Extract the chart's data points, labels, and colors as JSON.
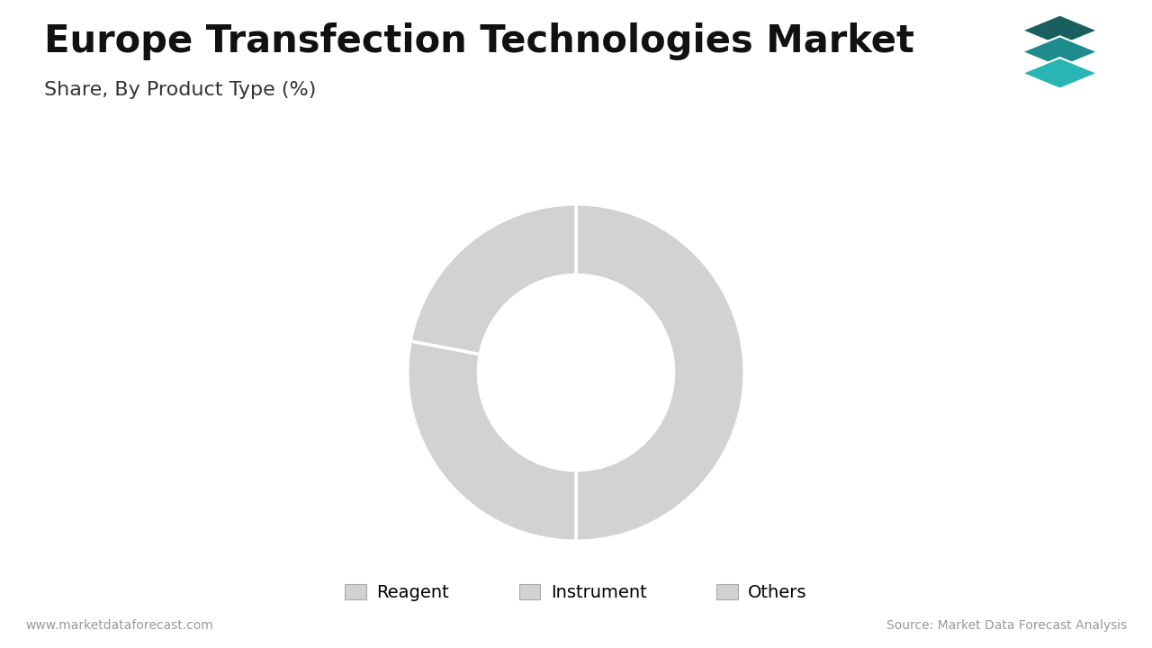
{
  "title": "Europe Transfection Technologies Market",
  "subtitle": "Share, By Product Type (%)",
  "labels": [
    "Reagent",
    "Instrument",
    "Others"
  ],
  "values": [
    50,
    28,
    22
  ],
  "colors": [
    "#d2d2d2",
    "#d2d2d2",
    "#d2d2d2"
  ],
  "wedge_edge_color": "#ffffff",
  "wedge_linewidth": 2.5,
  "donut_width": 0.42,
  "background_color": "#ffffff",
  "title_fontsize": 30,
  "subtitle_fontsize": 16,
  "legend_fontsize": 14,
  "footer_left": "www.marketdataforecast.com",
  "footer_right": "Source: Market Data Forecast Analysis",
  "footer_fontsize": 10,
  "title_bar_color": "#2d8a8a",
  "startangle": 90,
  "icon_colors": [
    "#1a5f5f",
    "#1e8c8c",
    "#2ab5b5"
  ],
  "divider_color": "#cccccc"
}
